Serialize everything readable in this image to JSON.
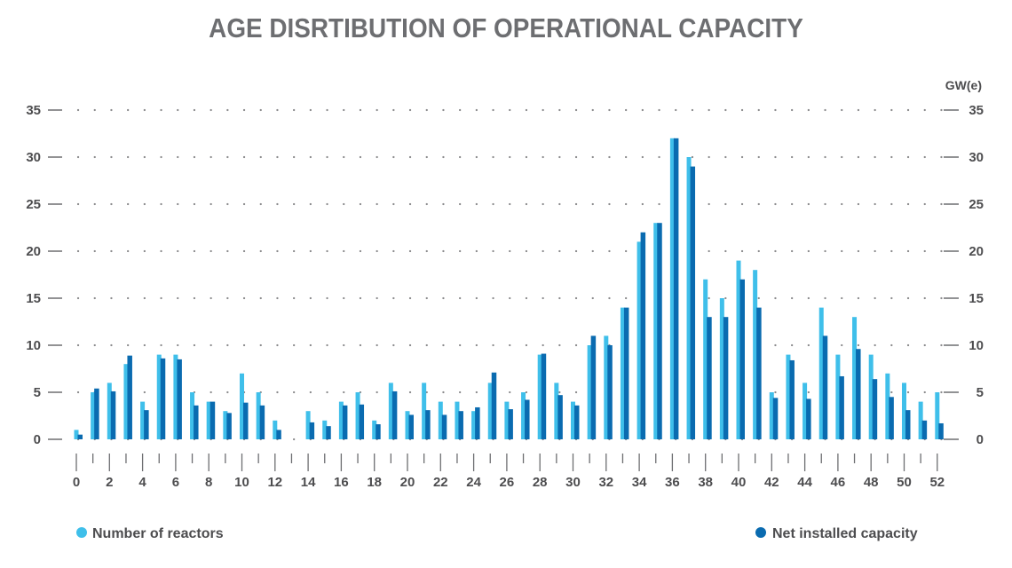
{
  "chart_data": {
    "type": "bar",
    "title": "AGE DISRTIBUTION OF OPERATIONAL CAPACITY",
    "y2_unit": "GW(e)",
    "ylim": [
      0,
      35
    ],
    "yticks": [
      0,
      5,
      10,
      15,
      20,
      25,
      30,
      35
    ],
    "x": [
      0,
      1,
      2,
      3,
      4,
      5,
      6,
      7,
      8,
      9,
      10,
      11,
      12,
      13,
      14,
      15,
      16,
      17,
      18,
      19,
      20,
      21,
      22,
      23,
      24,
      25,
      26,
      27,
      28,
      29,
      30,
      31,
      32,
      33,
      34,
      35,
      36,
      37,
      38,
      39,
      40,
      41,
      42,
      43,
      44,
      45,
      46,
      47,
      48,
      49,
      50,
      51,
      52
    ],
    "xtick_labels": [
      "0",
      "2",
      "4",
      "6",
      "8",
      "10",
      "12",
      "14",
      "16",
      "18",
      "20",
      "22",
      "24",
      "26",
      "28",
      "30",
      "32",
      "34",
      "36",
      "38",
      "40",
      "42",
      "44",
      "46",
      "48",
      "50",
      "52"
    ],
    "grid": "dotted horizontal",
    "colors": {
      "reactors": "#3fbfea",
      "capacity": "#0a6bb0",
      "text": "#4d4d4f",
      "title": "#6d6e71"
    },
    "series": [
      {
        "name": "Number of reactors",
        "values": [
          1,
          5,
          6,
          8,
          4,
          9,
          9,
          5,
          4,
          3,
          7,
          5,
          2,
          0,
          3,
          2,
          4,
          5,
          2,
          6,
          3,
          6,
          4,
          4,
          3,
          6,
          4,
          5,
          9,
          6,
          4,
          10,
          11,
          14,
          21,
          23,
          32,
          30,
          17,
          15,
          19,
          18,
          5,
          9,
          6,
          14,
          9,
          13,
          9,
          7,
          6,
          4,
          5
        ]
      },
      {
        "name": "Net installed capacity",
        "values": [
          0.5,
          5.4,
          5.1,
          8.9,
          3.1,
          8.6,
          8.5,
          3.6,
          4,
          2.8,
          3.9,
          3.6,
          1,
          0,
          1.8,
          1.4,
          3.6,
          3.7,
          1.6,
          5.1,
          2.6,
          3.1,
          2.6,
          3,
          3.4,
          7.1,
          3.2,
          4.2,
          9.1,
          4.7,
          3.6,
          11,
          10,
          14,
          22,
          23,
          32,
          29,
          13,
          13,
          17,
          14,
          4.4,
          8.4,
          4.3,
          11,
          6.7,
          9.6,
          6.4,
          4.5,
          3.1,
          2,
          1.7
        ]
      }
    ]
  }
}
